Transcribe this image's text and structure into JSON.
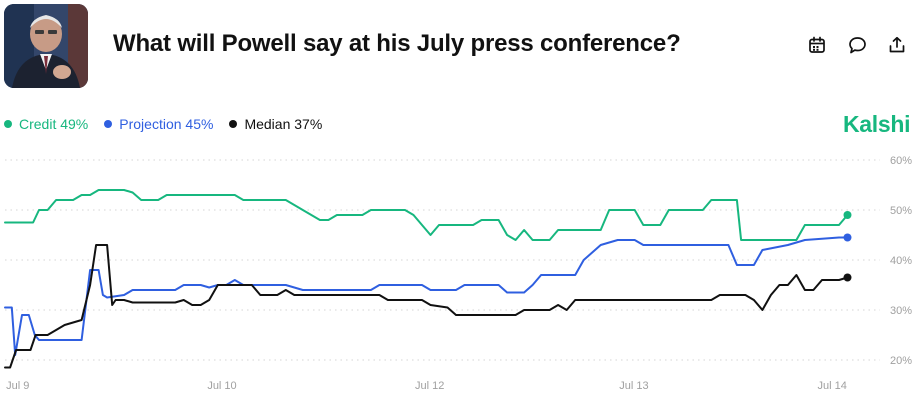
{
  "header": {
    "title": "What will Powell say at his July press conference?",
    "avatar_icon": "portrait-photo",
    "action_icons": [
      "calendar-icon",
      "comment-icon",
      "share-icon"
    ]
  },
  "brand": {
    "name": "Kalshi",
    "color": "#17b77f"
  },
  "legend": [
    {
      "label": "Credit 49%",
      "color": "#17b77f"
    },
    {
      "label": "Projection 45%",
      "color": "#2f5fe0"
    },
    {
      "label": "Median 37%",
      "color": "#111111"
    }
  ],
  "chart_data": {
    "type": "line",
    "xlim": [
      0,
      100
    ],
    "ylim": [
      18,
      62
    ],
    "y_ticks": [
      {
        "v": 60,
        "label": "60%"
      },
      {
        "v": 50,
        "label": "50%"
      },
      {
        "v": 40,
        "label": "40%"
      },
      {
        "v": 30,
        "label": "30%"
      },
      {
        "v": 20,
        "label": "20%"
      }
    ],
    "x_ticks": [
      {
        "x": 1.5,
        "label": "Jul 9"
      },
      {
        "x": 25.5,
        "label": "Jul 10"
      },
      {
        "x": 49.9,
        "label": "Jul 12"
      },
      {
        "x": 73.9,
        "label": "Jul 13"
      },
      {
        "x": 97.2,
        "label": "Jul 14"
      }
    ],
    "grid": true,
    "series": [
      {
        "name": "Credit",
        "color": "#17b77f",
        "points": [
          [
            0,
            47.5
          ],
          [
            3.3,
            47.5
          ],
          [
            4,
            50
          ],
          [
            5,
            50
          ],
          [
            6,
            52
          ],
          [
            8,
            52
          ],
          [
            9,
            53
          ],
          [
            10,
            53
          ],
          [
            11,
            54
          ],
          [
            14,
            54
          ],
          [
            15,
            53.5
          ],
          [
            16,
            52
          ],
          [
            18,
            52
          ],
          [
            19,
            53
          ],
          [
            27,
            53
          ],
          [
            28,
            52
          ],
          [
            33,
            52
          ],
          [
            34,
            51
          ],
          [
            35,
            50
          ],
          [
            37,
            48
          ],
          [
            38,
            48
          ],
          [
            39,
            49
          ],
          [
            42,
            49
          ],
          [
            43,
            50
          ],
          [
            47,
            50
          ],
          [
            48,
            49
          ],
          [
            49,
            47
          ],
          [
            50,
            45
          ],
          [
            51,
            47
          ],
          [
            55,
            47
          ],
          [
            56,
            48
          ],
          [
            58,
            48
          ],
          [
            59,
            45
          ],
          [
            60,
            44
          ],
          [
            61,
            46
          ],
          [
            62,
            44
          ],
          [
            64,
            44
          ],
          [
            65,
            46
          ],
          [
            70,
            46
          ],
          [
            71,
            50
          ],
          [
            74,
            50
          ],
          [
            75,
            47
          ],
          [
            77,
            47
          ],
          [
            78,
            50
          ],
          [
            82,
            50
          ],
          [
            83,
            52
          ],
          [
            86,
            52
          ],
          [
            86.5,
            44
          ],
          [
            90,
            44
          ],
          [
            93,
            44
          ],
          [
            94,
            47
          ],
          [
            98,
            47
          ],
          [
            99,
            49
          ]
        ]
      },
      {
        "name": "Projection",
        "color": "#2f5fe0",
        "points": [
          [
            0,
            30.5
          ],
          [
            0.8,
            30.5
          ],
          [
            1.2,
            21
          ],
          [
            2,
            29
          ],
          [
            2.8,
            29
          ],
          [
            3.5,
            25
          ],
          [
            4,
            24
          ],
          [
            9,
            24
          ],
          [
            10,
            38
          ],
          [
            11,
            38
          ],
          [
            11.5,
            33
          ],
          [
            12,
            32.5
          ],
          [
            14,
            33
          ],
          [
            15,
            34
          ],
          [
            20,
            34
          ],
          [
            21,
            35
          ],
          [
            23,
            35
          ],
          [
            24,
            34.5
          ],
          [
            25,
            35
          ],
          [
            26,
            35
          ],
          [
            27,
            36
          ],
          [
            28,
            35
          ],
          [
            33,
            35
          ],
          [
            35,
            34
          ],
          [
            43,
            34
          ],
          [
            44,
            35
          ],
          [
            49,
            35
          ],
          [
            50,
            34
          ],
          [
            53,
            34
          ],
          [
            54,
            35
          ],
          [
            58,
            35
          ],
          [
            59,
            33.5
          ],
          [
            61,
            33.5
          ],
          [
            62,
            35
          ],
          [
            63,
            37
          ],
          [
            67,
            37
          ],
          [
            68,
            40
          ],
          [
            70,
            43
          ],
          [
            72,
            44
          ],
          [
            74,
            44
          ],
          [
            75,
            43
          ],
          [
            85,
            43
          ],
          [
            86,
            39
          ],
          [
            88,
            39
          ],
          [
            89,
            42
          ],
          [
            92,
            43
          ],
          [
            94,
            44
          ],
          [
            98,
            44.5
          ],
          [
            99,
            44.5
          ]
        ]
      },
      {
        "name": "Median",
        "color": "#111111",
        "points": [
          [
            0,
            18.5
          ],
          [
            0.6,
            18.5
          ],
          [
            1.3,
            22
          ],
          [
            3,
            22
          ],
          [
            3.6,
            25
          ],
          [
            5,
            25
          ],
          [
            6,
            26
          ],
          [
            7,
            27
          ],
          [
            9,
            28
          ],
          [
            10,
            35
          ],
          [
            10.7,
            43
          ],
          [
            12,
            43
          ],
          [
            12.6,
            31
          ],
          [
            13,
            32
          ],
          [
            14,
            32
          ],
          [
            15,
            31.5
          ],
          [
            20,
            31.5
          ],
          [
            21,
            32
          ],
          [
            22,
            31
          ],
          [
            23,
            31
          ],
          [
            24,
            32
          ],
          [
            25,
            35
          ],
          [
            29,
            35
          ],
          [
            30,
            33
          ],
          [
            32,
            33
          ],
          [
            33,
            34
          ],
          [
            34,
            33
          ],
          [
            44,
            33
          ],
          [
            45,
            32
          ],
          [
            49,
            32
          ],
          [
            50,
            31
          ],
          [
            52,
            30.5
          ],
          [
            53,
            29
          ],
          [
            60,
            29
          ],
          [
            61,
            30
          ],
          [
            64,
            30
          ],
          [
            65,
            31
          ],
          [
            66,
            30
          ],
          [
            67,
            32
          ],
          [
            83,
            32
          ],
          [
            84,
            33
          ],
          [
            87,
            33
          ],
          [
            88,
            32
          ],
          [
            89,
            30
          ],
          [
            90,
            33
          ],
          [
            91,
            35
          ],
          [
            92,
            35
          ],
          [
            93,
            37
          ],
          [
            94,
            34
          ],
          [
            95,
            34
          ],
          [
            96,
            36
          ],
          [
            98,
            36
          ],
          [
            99,
            36.5
          ]
        ]
      }
    ]
  }
}
